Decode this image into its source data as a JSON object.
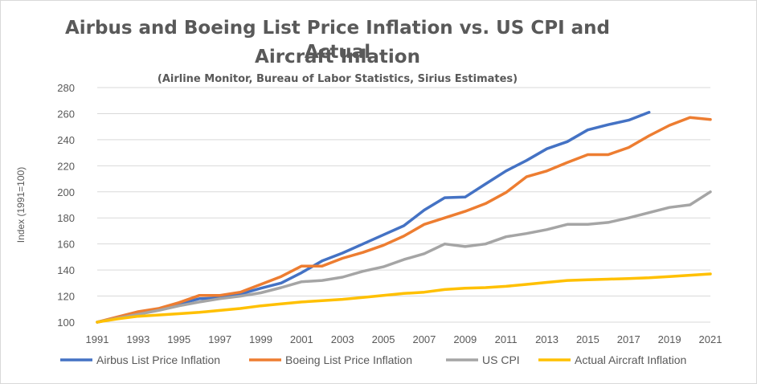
{
  "chart_data": {
    "type": "line",
    "title": "Airbus and Boeing List Price Inflation vs. US CPI and Actual",
    "title_line2": "Aircraft Inlation",
    "subtitle": "(Airline Monitor, Bureau of Labor Statistics, Sirius Estimates)",
    "ylabel": "Index (1991=100)",
    "xlabel": "",
    "ylim": [
      100,
      280
    ],
    "xlim": [
      1991,
      2021
    ],
    "yticks": [
      100,
      120,
      140,
      160,
      180,
      200,
      220,
      240,
      260,
      280
    ],
    "xticks": [
      1991,
      1993,
      1995,
      1997,
      1999,
      2001,
      2003,
      2005,
      2007,
      2009,
      2011,
      2013,
      2015,
      2017,
      2019,
      2021
    ],
    "grid": "horizontal",
    "legend_position": "bottom",
    "x": [
      1991,
      1992,
      1993,
      1994,
      1995,
      1996,
      1997,
      1998,
      1999,
      2000,
      2001,
      2002,
      2003,
      2004,
      2005,
      2006,
      2007,
      2008,
      2009,
      2010,
      2011,
      2012,
      2013,
      2014,
      2015,
      2016,
      2017,
      2018,
      2019,
      2020,
      2021
    ],
    "series": [
      {
        "name": "Airbus List Price Inflation",
        "color": "#4472c4",
        "values": [
          100,
          103.5,
          107,
          109.5,
          114,
          118,
          118.5,
          121.5,
          126,
          130,
          138,
          147,
          153,
          160,
          167,
          174,
          186,
          195.5,
          196,
          206,
          216,
          224,
          233,
          238.5,
          247.5,
          251.5,
          255,
          261,
          null,
          null,
          null
        ]
      },
      {
        "name": "Boeing List Price Inflation",
        "color": "#ed7d31",
        "values": [
          100,
          104,
          108,
          110.5,
          115,
          120.5,
          120.5,
          123,
          129,
          135,
          143,
          143,
          149,
          153.5,
          159,
          166,
          175,
          180,
          185,
          191,
          199.5,
          211.5,
          216,
          222.5,
          228.5,
          228.5,
          234,
          243,
          251,
          257,
          255.5
        ]
      },
      {
        "name": "US CPI",
        "color": "#a5a5a5",
        "values": [
          100,
          103,
          106,
          109,
          112.5,
          115.5,
          118,
          120,
          122.5,
          126.5,
          131,
          132,
          134.5,
          139,
          142.5,
          148,
          152.5,
          160,
          158,
          160,
          165.5,
          168,
          171,
          175,
          175,
          176.5,
          180,
          184,
          188,
          190,
          200
        ]
      },
      {
        "name": "Actual Aircraft Inflation",
        "color": "#ffc000",
        "values": [
          100,
          102.5,
          104.5,
          105.5,
          106.5,
          107.5,
          109,
          110.5,
          112.5,
          114,
          115.5,
          116.5,
          117.5,
          119,
          120.5,
          122,
          123,
          125,
          126,
          126.5,
          127.5,
          129,
          130.5,
          132,
          132.5,
          133,
          133.5,
          134,
          135,
          136,
          137
        ]
      }
    ]
  }
}
